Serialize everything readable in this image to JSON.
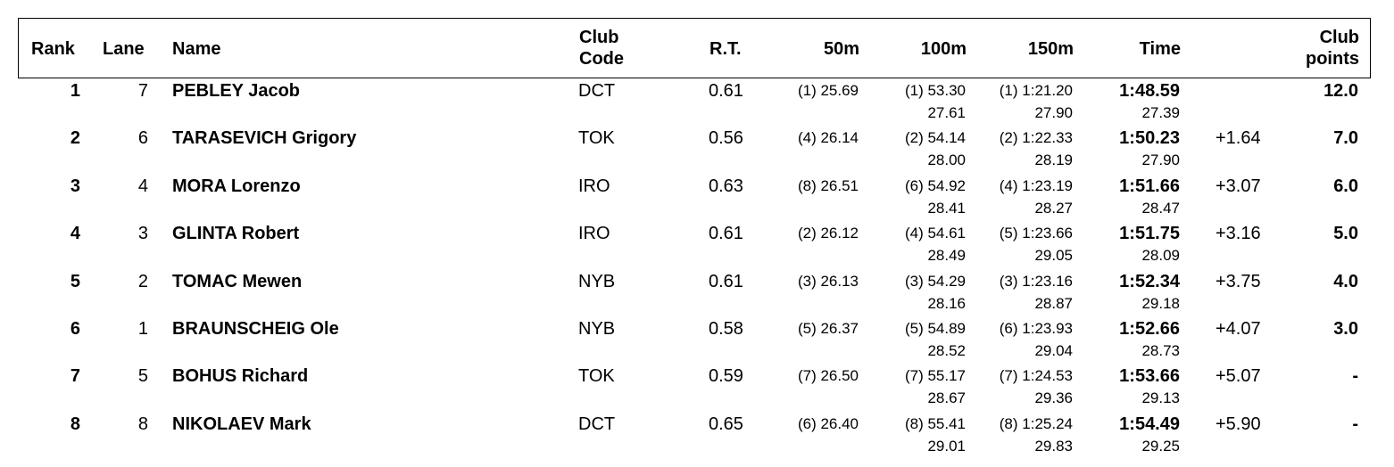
{
  "headers": {
    "rank": "Rank",
    "lane": "Lane",
    "name": "Name",
    "club_code_1": "Club",
    "club_code_2": "Code",
    "rt": "R.T.",
    "split_50": "50m",
    "split_100": "100m",
    "split_150": "150m",
    "time": "Time",
    "club_points_1": "Club",
    "club_points_2": "points"
  },
  "rows": [
    {
      "rank": "1",
      "lane": "7",
      "name": "PEBLEY Jacob",
      "club": "DCT",
      "rt": "0.61",
      "s50": "(1) 25.69",
      "s100": "(1) 53.30",
      "s100_lap": "27.61",
      "s150": "(1) 1:21.20",
      "s150_lap": "27.90",
      "time": "1:48.59",
      "time_lap": "27.39",
      "diff": "",
      "points": "12.0"
    },
    {
      "rank": "2",
      "lane": "6",
      "name": "TARASEVICH Grigory",
      "club": "TOK",
      "rt": "0.56",
      "s50": "(4) 26.14",
      "s100": "(2) 54.14",
      "s100_lap": "28.00",
      "s150": "(2) 1:22.33",
      "s150_lap": "28.19",
      "time": "1:50.23",
      "time_lap": "27.90",
      "diff": "+1.64",
      "points": "7.0"
    },
    {
      "rank": "3",
      "lane": "4",
      "name": "MORA Lorenzo",
      "club": "IRO",
      "rt": "0.63",
      "s50": "(8) 26.51",
      "s100": "(6) 54.92",
      "s100_lap": "28.41",
      "s150": "(4) 1:23.19",
      "s150_lap": "28.27",
      "time": "1:51.66",
      "time_lap": "28.47",
      "diff": "+3.07",
      "points": "6.0"
    },
    {
      "rank": "4",
      "lane": "3",
      "name": "GLINTA Robert",
      "club": "IRO",
      "rt": "0.61",
      "s50": "(2) 26.12",
      "s100": "(4) 54.61",
      "s100_lap": "28.49",
      "s150": "(5) 1:23.66",
      "s150_lap": "29.05",
      "time": "1:51.75",
      "time_lap": "28.09",
      "diff": "+3.16",
      "points": "5.0"
    },
    {
      "rank": "5",
      "lane": "2",
      "name": "TOMAC Mewen",
      "club": "NYB",
      "rt": "0.61",
      "s50": "(3) 26.13",
      "s100": "(3) 54.29",
      "s100_lap": "28.16",
      "s150": "(3) 1:23.16",
      "s150_lap": "28.87",
      "time": "1:52.34",
      "time_lap": "29.18",
      "diff": "+3.75",
      "points": "4.0"
    },
    {
      "rank": "6",
      "lane": "1",
      "name": "BRAUNSCHEIG Ole",
      "club": "NYB",
      "rt": "0.58",
      "s50": "(5) 26.37",
      "s100": "(5) 54.89",
      "s100_lap": "28.52",
      "s150": "(6) 1:23.93",
      "s150_lap": "29.04",
      "time": "1:52.66",
      "time_lap": "28.73",
      "diff": "+4.07",
      "points": "3.0"
    },
    {
      "rank": "7",
      "lane": "5",
      "name": "BOHUS Richard",
      "club": "TOK",
      "rt": "0.59",
      "s50": "(7) 26.50",
      "s100": "(7) 55.17",
      "s100_lap": "28.67",
      "s150": "(7) 1:24.53",
      "s150_lap": "29.36",
      "time": "1:53.66",
      "time_lap": "29.13",
      "diff": "+5.07",
      "points": "-"
    },
    {
      "rank": "8",
      "lane": "8",
      "name": "NIKOLAEV Mark",
      "club": "DCT",
      "rt": "0.65",
      "s50": "(6) 26.40",
      "s100": "(8) 55.41",
      "s100_lap": "29.01",
      "s150": "(8) 1:25.24",
      "s150_lap": "29.83",
      "time": "1:54.49",
      "time_lap": "29.25",
      "diff": "+5.90",
      "points": "-"
    }
  ]
}
